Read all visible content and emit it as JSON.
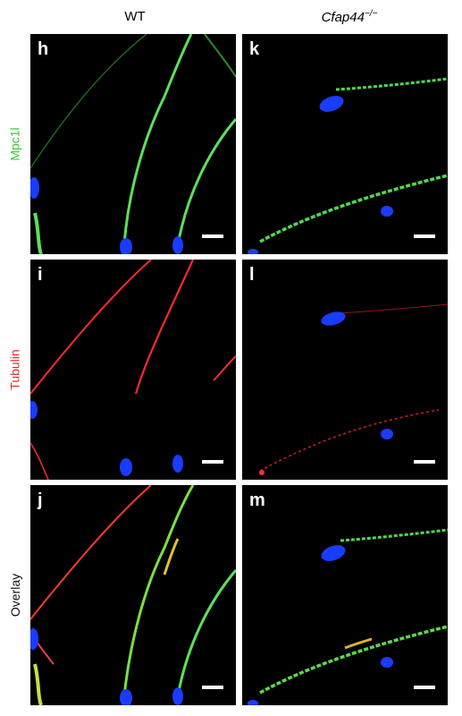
{
  "columns": [
    {
      "label": "WT"
    },
    {
      "label": "Cfap44",
      "superscript": "−/−"
    }
  ],
  "rows": [
    {
      "label": "Mpc1l",
      "color": "#36c836"
    },
    {
      "label": "Tubulin",
      "color": "#e02a2a"
    },
    {
      "label": "Overlay",
      "color": "#111111"
    }
  ],
  "panels": {
    "h": "h",
    "i": "i",
    "j": "j",
    "k": "k",
    "l": "l",
    "m": "m"
  }
}
